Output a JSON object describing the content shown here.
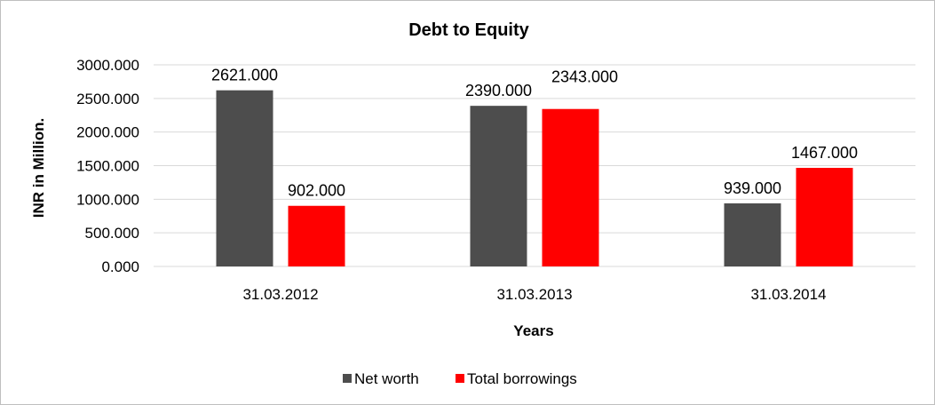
{
  "chart_data": {
    "type": "bar",
    "title": "Debt to Equity",
    "xlabel": "Years",
    "ylabel": "INR in Million.",
    "categories": [
      "31.03.2012",
      "31.03.2013",
      "31.03.2014"
    ],
    "series": [
      {
        "name": "Net worth",
        "color": "#4d4d4d",
        "values": [
          2621,
          2390,
          939
        ],
        "value_labels": [
          "2621.000",
          "2390.000",
          "939.000"
        ]
      },
      {
        "name": "Total borrowings",
        "color": "#ff0000",
        "values": [
          902,
          2343,
          1467
        ],
        "value_labels": [
          "902.000",
          "2343.000",
          "1467.000"
        ]
      }
    ],
    "ylim": [
      0,
      3000
    ],
    "yticks": [
      0,
      500,
      1000,
      1500,
      2000,
      2500,
      3000
    ],
    "ytick_labels": [
      "0.000",
      "500.000",
      "1000.000",
      "1500.000",
      "2000.000",
      "2500.000",
      "3000.000"
    ],
    "grid": true,
    "gridline_color": "#d9d9d9",
    "legend_position": "bottom"
  }
}
